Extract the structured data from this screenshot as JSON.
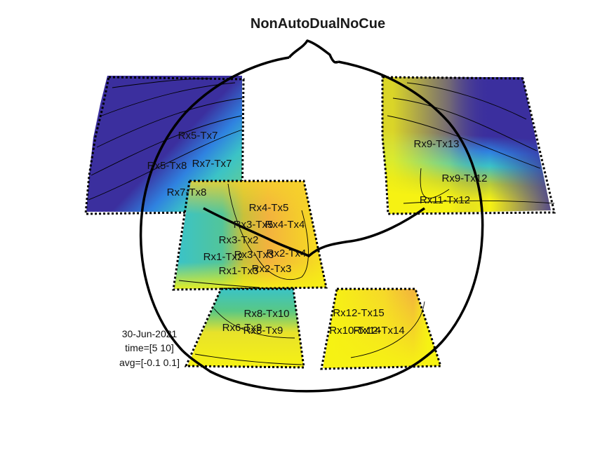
{
  "title": "NonAutoDualNoCue",
  "info": {
    "date": "30-Jun-2021",
    "time": "time=[5 10]",
    "avg": "avg=[-0.1 0.1]"
  },
  "colormap": {
    "name": "parula",
    "low": "#3b2f9e",
    "mid_blue": "#2f82e0",
    "cyan": "#3bc3c6",
    "orange": "#f3b23e",
    "high": "#f6f213"
  },
  "channels": {
    "left_frontal": [
      "Rx5-Tx7",
      "Rx5-Tx8",
      "Rx7-Tx7",
      "Rx7-Tx8"
    ],
    "right_frontal": [
      "Rx9-Tx13",
      "Rx9-Tx12",
      "Rx11-Tx12"
    ],
    "central": [
      "Rx4-Tx5",
      "Rx3-Tx5",
      "Rx4-Tx4",
      "Rx3-Tx2",
      "Rx1-Tx2",
      "Rx3-Tx3",
      "Rx2-Tx4",
      "Rx1-Tx3",
      "Rx2-Tx3"
    ],
    "left_occipital": [
      "Rx8-Tx10",
      "Rx6-Tx9",
      "Rx8-Tx9"
    ],
    "right_occipital": [
      "Rx12-Tx15",
      "Rx10-Tx14",
      "Rx12-Tx14"
    ]
  }
}
